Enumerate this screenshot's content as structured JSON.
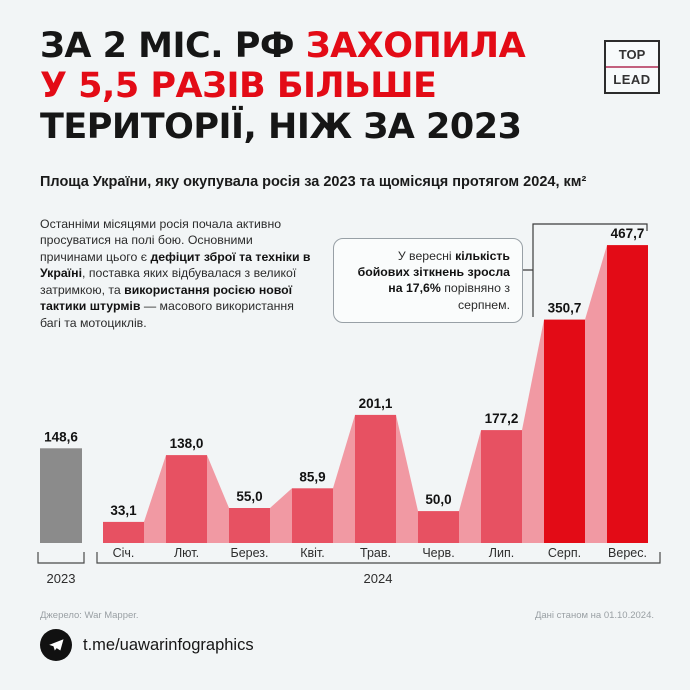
{
  "page": {
    "background": "#f2f5f6"
  },
  "logo": {
    "top": "TOP",
    "bottom": "LEAD"
  },
  "title": {
    "line1_black": "ЗА 2 МІС. РФ ",
    "line1_red": "ЗАХОПИЛА",
    "line2_red": "У 5,5 РАЗІВ БІЛЬШЕ",
    "line3_black": "ТЕРИТОРІЇ, НІЖ ЗА 2023"
  },
  "subtitle": "Площа України, яку окупувала росія за 2023 та щомісяця протягом 2024, км²",
  "intro": {
    "p1": "Останніми місяцями росія почала активно просуватися на полі бою. Основними причинами цього є ",
    "b1": "дефіцит зброї та техніки в Україні",
    "p2": ", поставка яких відбувалася з великої затримкою, та ",
    "b2": "використання росією нової тактики штурмів",
    "p3": " — масового використання багі та мотоциклів."
  },
  "callout": {
    "pre": "У вересні ",
    "bold": "кількість бойових зіткнень зросла на 17,6%",
    "post": " порівняно з серпнем."
  },
  "chart_data": {
    "type": "bar",
    "title": "Площа України, яку окупувала росія за 2023 та щомісяця протягом 2024, км²",
    "unit": "км²",
    "ylim": [
      0,
      500
    ],
    "grid": false,
    "groups": [
      {
        "year": "2023",
        "categories": [
          "2023"
        ],
        "values": [
          148.6
        ],
        "value_labels": [
          "148,6"
        ]
      },
      {
        "year": "2024",
        "categories": [
          "Січ.",
          "Лют.",
          "Берез.",
          "Квіт.",
          "Трав.",
          "Черв.",
          "Лип.",
          "Серп.",
          "Верес."
        ],
        "values": [
          33.1,
          138.0,
          55.0,
          85.9,
          201.1,
          50.0,
          177.2,
          350.7,
          467.7
        ],
        "value_labels": [
          "33,1",
          "138,0",
          "55,0",
          "85,9",
          "201,1",
          "50,0",
          "177,2",
          "350,7",
          "467,7"
        ],
        "highlight_from": 7
      }
    ],
    "annotation_months": [
      "Серп.",
      "Верес."
    ],
    "colors": {
      "bar_2023": "#8b8b8b",
      "bar_2024": "#e75162",
      "bar_highlight": "#e30b16",
      "connector": "#f199a3",
      "label": "#121212",
      "axis_text": "#2d2d2d",
      "bracket": "#4a4a4a"
    }
  },
  "footer": {
    "source": "Джерело: War Mapper.",
    "data_asof": "Дані станом на 01.10.2024.",
    "telegram": "t.me/uawarinfographics"
  }
}
